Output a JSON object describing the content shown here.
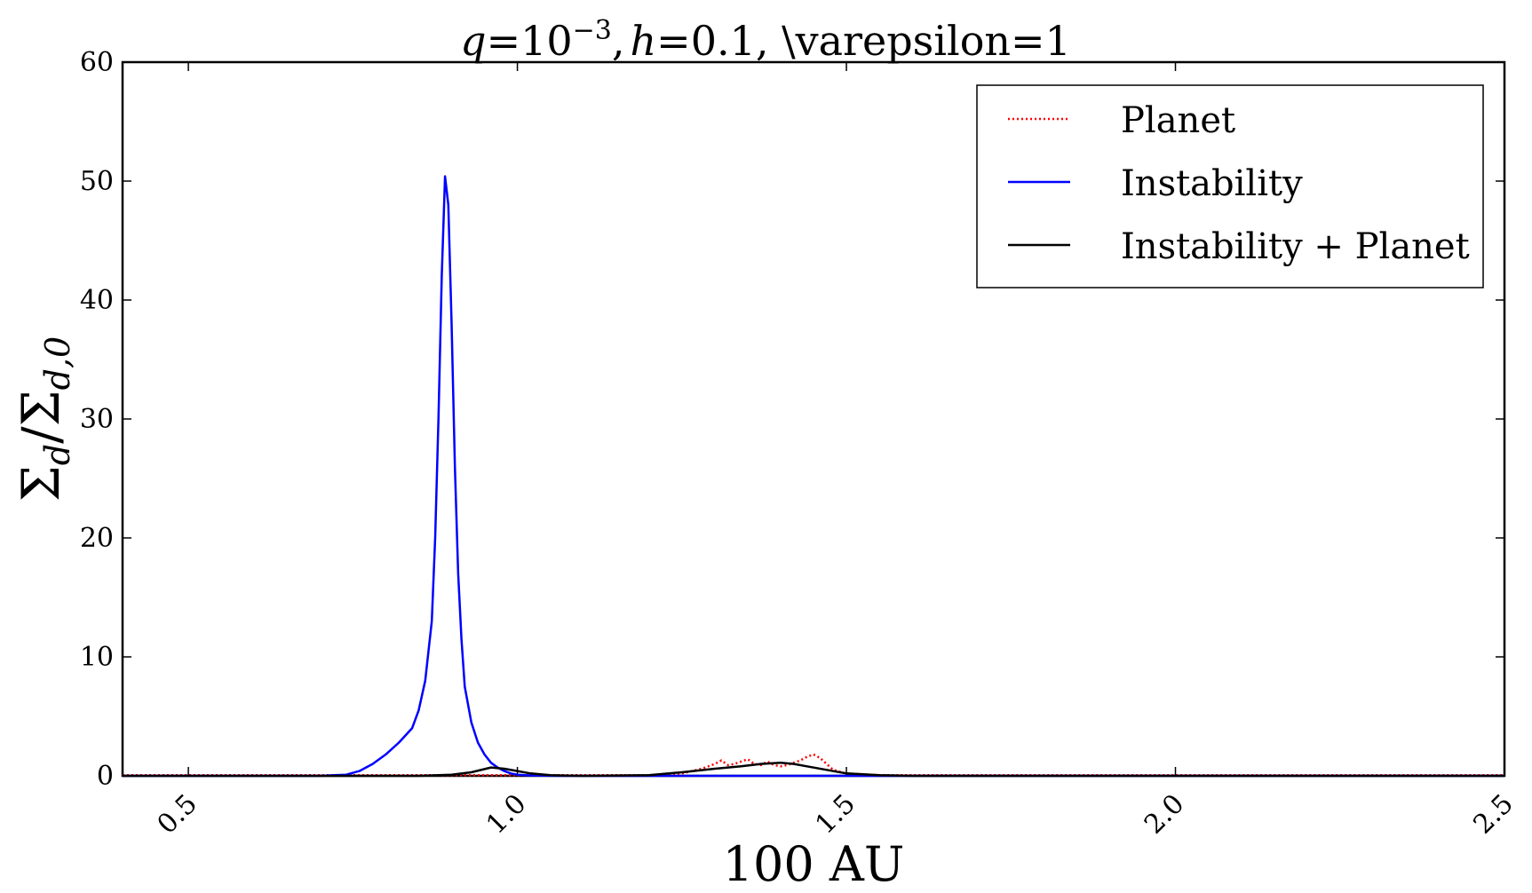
{
  "chart_data": {
    "type": "line",
    "title": "q=10⁻³, h=0.1, \\varepsilon=1",
    "title_parts": {
      "q": "q",
      "eq1": "=10",
      "exp": "−3",
      "comma1": ",",
      "h": "h",
      "eq2": "=0.1, \\varepsilon=1"
    },
    "xlabel": "100 AU",
    "ylabel": {
      "sigma1": "Σ",
      "sub1": "d",
      "slash": "/",
      "sigma2": "Σ",
      "sub2": "d,0"
    },
    "xlim": [
      0.4,
      2.5
    ],
    "ylim": [
      0,
      60
    ],
    "xticks": [
      0.5,
      1.0,
      1.5,
      2.0,
      2.5
    ],
    "xtick_labels": [
      "0.5",
      "1.0",
      "1.5",
      "2.0",
      "2.5"
    ],
    "yticks": [
      0,
      10,
      20,
      30,
      40,
      50,
      60
    ],
    "ytick_labels": [
      "0",
      "10",
      "20",
      "30",
      "40",
      "50",
      "60"
    ],
    "grid": false,
    "legend_position": "top-right",
    "series": [
      {
        "name": "Planet",
        "color": "#ff0000",
        "style": "dotted",
        "x": [
          0.4,
          1.2,
          1.25,
          1.28,
          1.3,
          1.31,
          1.32,
          1.33,
          1.34,
          1.35,
          1.36,
          1.37,
          1.38,
          1.39,
          1.4,
          1.41,
          1.42,
          1.43,
          1.44,
          1.45,
          1.46,
          1.47,
          1.48,
          1.5,
          1.55,
          2.5
        ],
        "y": [
          0.05,
          0.05,
          0.2,
          0.6,
          1.0,
          1.3,
          0.9,
          1.0,
          1.2,
          1.4,
          1.0,
          0.9,
          1.2,
          0.9,
          0.8,
          0.9,
          1.1,
          1.3,
          1.6,
          1.8,
          1.5,
          1.0,
          0.5,
          0.2,
          0.05,
          0.05
        ]
      },
      {
        "name": "Instability",
        "color": "#0000ff",
        "style": "solid",
        "x": [
          0.4,
          0.7,
          0.74,
          0.76,
          0.78,
          0.8,
          0.82,
          0.84,
          0.85,
          0.86,
          0.87,
          0.875,
          0.88,
          0.885,
          0.89,
          0.895,
          0.9,
          0.905,
          0.91,
          0.915,
          0.92,
          0.93,
          0.94,
          0.95,
          0.96,
          0.97,
          0.98,
          0.99,
          1.0,
          1.02,
          1.05,
          1.1,
          2.5
        ],
        "y": [
          0,
          0,
          0.1,
          0.4,
          1.0,
          1.8,
          2.8,
          4.0,
          5.5,
          8.0,
          13.0,
          20.0,
          30.0,
          42.0,
          50.4,
          48.0,
          38.0,
          26.0,
          17.0,
          11.5,
          7.5,
          4.5,
          2.8,
          1.8,
          1.1,
          0.7,
          0.4,
          0.2,
          0.1,
          0.03,
          0.01,
          0,
          0
        ]
      },
      {
        "name": "Instability + Planet",
        "color": "#000000",
        "style": "solid",
        "x": [
          0.4,
          0.85,
          0.9,
          0.93,
          0.96,
          0.98,
          1.0,
          1.02,
          1.05,
          1.1,
          1.2,
          1.25,
          1.3,
          1.34,
          1.37,
          1.4,
          1.42,
          1.44,
          1.47,
          1.5,
          1.55,
          1.6,
          2.5
        ],
        "y": [
          0,
          0,
          0.1,
          0.3,
          0.7,
          0.6,
          0.4,
          0.2,
          0.05,
          0,
          0.05,
          0.3,
          0.6,
          0.8,
          1.0,
          1.1,
          1.0,
          0.8,
          0.5,
          0.2,
          0.05,
          0,
          0
        ]
      }
    ]
  }
}
